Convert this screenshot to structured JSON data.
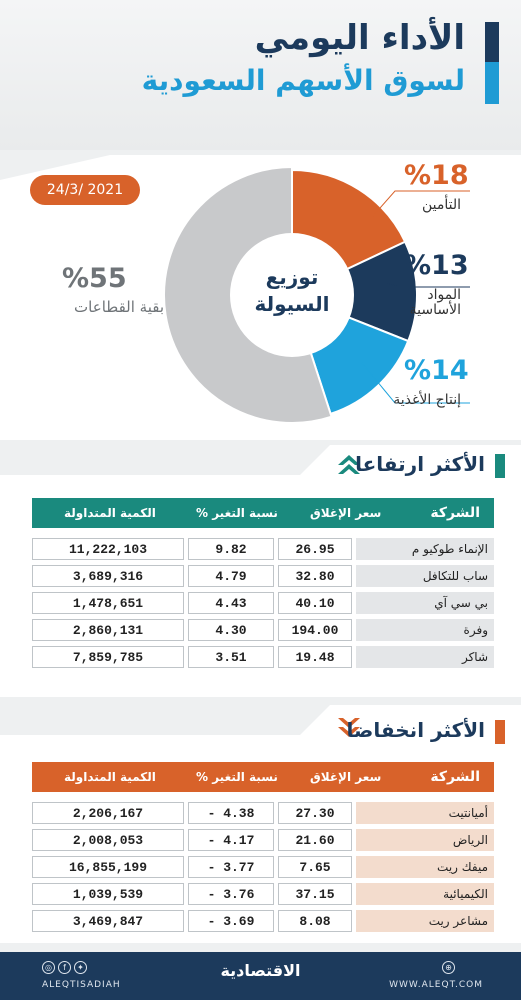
{
  "header": {
    "title_line1": "الأداء اليومي",
    "title_line2": "لسوق الأسهم السعودية"
  },
  "date": "24/3/ 2021",
  "chart_data": {
    "type": "pie",
    "title": "توزيع السيولة",
    "slices": [
      {
        "label": "التأمين",
        "value": 18,
        "pct_label": "%18",
        "color": "#d8622a"
      },
      {
        "label": "المواد الأساسية",
        "line1": "المواد",
        "line2": "الأساسية",
        "value": 13,
        "pct_label": "%13",
        "color": "#1c3a5c"
      },
      {
        "label": "إنتاج الأغذية",
        "value": 14,
        "pct_label": "%14",
        "color": "#1fa3dc"
      },
      {
        "label": "بقية القطاعات",
        "value": 55,
        "pct_label": "%55",
        "color": "#c8c9cb"
      }
    ]
  },
  "gainers": {
    "title": "الأكثر ارتفاعا",
    "headers": {
      "company": "الشركة",
      "close": "سعر الإغلاق",
      "change": "نسبة التغير %",
      "volume": "الكمية المتداولة"
    },
    "rows": [
      {
        "company": "الإنماء طوكيو م",
        "close": "26.95",
        "change": "9.82",
        "volume": "11,222,103"
      },
      {
        "company": "ساب للتكافل",
        "close": "32.80",
        "change": "4.79",
        "volume": "3,689,316"
      },
      {
        "company": "بي سي آي",
        "close": "40.10",
        "change": "4.43",
        "volume": "1,478,651"
      },
      {
        "company": "وفرة",
        "close": "194.00",
        "change": "4.30",
        "volume": "2,860,131"
      },
      {
        "company": "شاكر",
        "close": "19.48",
        "change": "3.51",
        "volume": "7,859,785"
      }
    ]
  },
  "losers": {
    "title": "الأكثر انخفاضا",
    "headers": {
      "company": "الشركة",
      "close": "سعر الإغلاق",
      "change": "نسبة التغير %",
      "volume": "الكمية المتداولة"
    },
    "rows": [
      {
        "company": "أميانتيت",
        "close": "27.30",
        "change": "- 4.38",
        "volume": "2,206,167"
      },
      {
        "company": "الرياض",
        "close": "21.60",
        "change": "- 4.17",
        "volume": "2,008,053"
      },
      {
        "company": "ميفك ريت",
        "close": "7.65",
        "change": "- 3.77",
        "volume": "16,855,199"
      },
      {
        "company": "الكيميائية",
        "close": "37.15",
        "change": "- 3.76",
        "volume": "1,039,539"
      },
      {
        "company": "مشاعر ريت",
        "close": "8.08",
        "change": "- 3.69",
        "volume": "3,469,847"
      }
    ]
  },
  "footer": {
    "handle": "ALEQTISADIAH",
    "logo": "الاقتصادية",
    "site": "WWW.ALEQT.COM"
  },
  "colors": {
    "navy": "#1c3a5c",
    "teal": "#1a8a7e",
    "orange": "#d8622a",
    "blue": "#1fa3dc",
    "gray": "#c8c9cb",
    "gainer_row_bg": "#e4e6e8",
    "loser_row_bg": "#f3dccd"
  }
}
